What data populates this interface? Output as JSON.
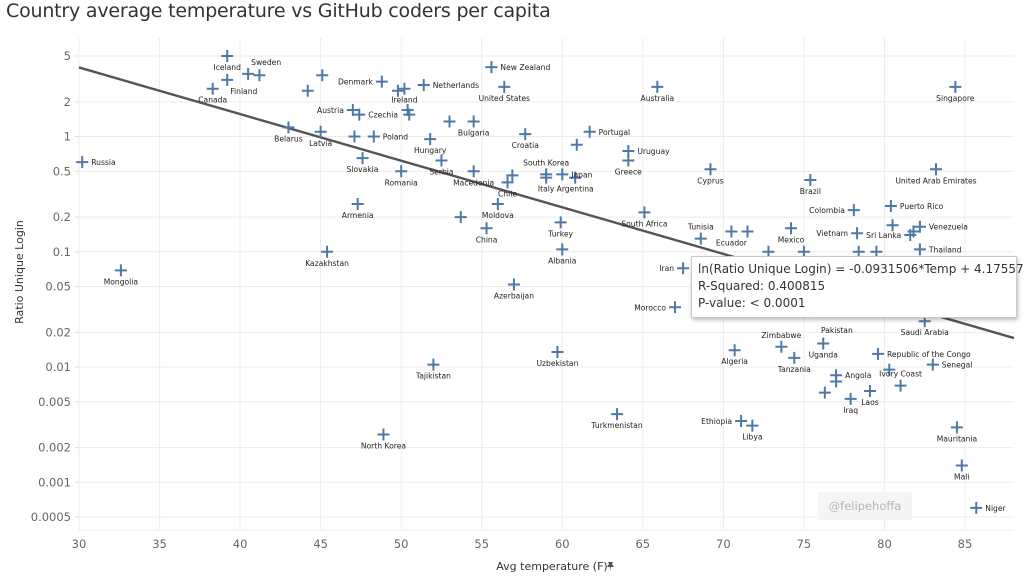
{
  "page": {
    "title": "Country average temperature vs GitHub coders per capita"
  },
  "tooltip": {
    "line1": "ln(Ratio Unique Login) = -0.0931506*Temp + 4.17557",
    "line2": "R-Squared: 0.400815",
    "line3": "P-value: < 0.0001"
  },
  "watermark": "@felipehoffa",
  "colors": {
    "marker": "#4e79a7",
    "trend": "#555555",
    "grid": "#ececec"
  },
  "chart_data": {
    "type": "scatter",
    "title": "Country average temperature vs GitHub coders per capita",
    "xlabel": "Avg temperature (F)",
    "ylabel": "Ratio Unique Login",
    "x_scale": "linear",
    "y_scale": "log",
    "xlim": [
      30,
      88
    ],
    "ylim": [
      0.0004,
      7
    ],
    "x_ticks": [
      30,
      35,
      40,
      45,
      50,
      55,
      60,
      65,
      70,
      75,
      80,
      85
    ],
    "x_tick_labels": [
      "30",
      "35",
      "40",
      "45",
      "50",
      "55",
      "60",
      "65",
      "70",
      "75",
      "80",
      "85"
    ],
    "y_ticks": [
      5,
      2,
      1,
      0.5,
      0.2,
      0.1,
      0.05,
      0.02,
      0.01,
      0.005,
      0.002,
      0.001,
      0.0005
    ],
    "y_tick_labels": [
      "5",
      "2",
      "1",
      "0.5",
      "0.2",
      "0.1",
      "0.05",
      "0.02",
      "0.01",
      "0.005",
      "0.002",
      "0.001",
      "0.0005"
    ],
    "grid": true,
    "marker": "plus",
    "trendline": {
      "type": "exponential",
      "slope": -0.0931506,
      "intercept": 4.17557,
      "r_squared": 0.400815,
      "p_value": "< 0.0001"
    },
    "points": [
      {
        "label": "Russia",
        "x": 30.2,
        "y": 0.6,
        "pos": "right"
      },
      {
        "label": "Mongolia",
        "x": 32.6,
        "y": 0.069,
        "pos": "below"
      },
      {
        "label": "Iceland",
        "x": 39.2,
        "y": 5.0,
        "pos": "below"
      },
      {
        "label": "Sweden",
        "x": 40.5,
        "y": 3.5,
        "pos": "above-right"
      },
      {
        "label": "",
        "x": 41.2,
        "y": 3.4,
        "pos": "none"
      },
      {
        "label": "Finland",
        "x": 39.2,
        "y": 3.1,
        "pos": "below-right"
      },
      {
        "label": "Canada",
        "x": 38.3,
        "y": 2.6,
        "pos": "below"
      },
      {
        "label": "Belarus",
        "x": 43.0,
        "y": 1.2,
        "pos": "below"
      },
      {
        "label": "",
        "x": 44.2,
        "y": 2.5,
        "pos": "none"
      },
      {
        "label": "",
        "x": 45.1,
        "y": 3.4,
        "pos": "none"
      },
      {
        "label": "Latvia",
        "x": 45.0,
        "y": 1.1,
        "pos": "below"
      },
      {
        "label": "Kazakhstan",
        "x": 45.4,
        "y": 0.1,
        "pos": "below"
      },
      {
        "label": "Denmark",
        "x": 48.8,
        "y": 3.0,
        "pos": "left"
      },
      {
        "label": "Austria",
        "x": 47.0,
        "y": 1.7,
        "pos": "left"
      },
      {
        "label": "Czechia",
        "x": 47.4,
        "y": 1.55,
        "pos": "right"
      },
      {
        "label": "",
        "x": 47.1,
        "y": 1.0,
        "pos": "none"
      },
      {
        "label": "Poland",
        "x": 48.3,
        "y": 1.0,
        "pos": "right"
      },
      {
        "label": "Slovakia",
        "x": 47.6,
        "y": 0.65,
        "pos": "below"
      },
      {
        "label": "Armenia",
        "x": 47.3,
        "y": 0.26,
        "pos": "below"
      },
      {
        "label": "North Korea",
        "x": 48.9,
        "y": 0.0026,
        "pos": "below"
      },
      {
        "label": "",
        "x": 49.8,
        "y": 2.5,
        "pos": "none"
      },
      {
        "label": "Ireland",
        "x": 50.2,
        "y": 2.6,
        "pos": "below"
      },
      {
        "label": "Netherlands",
        "x": 51.4,
        "y": 2.8,
        "pos": "right"
      },
      {
        "label": "",
        "x": 50.4,
        "y": 1.7,
        "pos": "none"
      },
      {
        "label": "",
        "x": 50.5,
        "y": 1.55,
        "pos": "none"
      },
      {
        "label": "Romania",
        "x": 50.0,
        "y": 0.5,
        "pos": "below"
      },
      {
        "label": "Hungary",
        "x": 51.8,
        "y": 0.95,
        "pos": "below"
      },
      {
        "label": "Serbia",
        "x": 52.5,
        "y": 0.62,
        "pos": "below"
      },
      {
        "label": "Tajikistan",
        "x": 52.0,
        "y": 0.0105,
        "pos": "below"
      },
      {
        "label": "",
        "x": 53.0,
        "y": 1.35,
        "pos": "none"
      },
      {
        "label": "Bulgaria",
        "x": 54.5,
        "y": 1.35,
        "pos": "below"
      },
      {
        "label": "",
        "x": 53.7,
        "y": 0.2,
        "pos": "none"
      },
      {
        "label": "Macedonia",
        "x": 54.5,
        "y": 0.5,
        "pos": "below"
      },
      {
        "label": "New Zealand",
        "x": 55.6,
        "y": 4.0,
        "pos": "right"
      },
      {
        "label": "United States",
        "x": 56.4,
        "y": 2.7,
        "pos": "below"
      },
      {
        "label": "China",
        "x": 55.3,
        "y": 0.16,
        "pos": "below"
      },
      {
        "label": "Moldova",
        "x": 56.0,
        "y": 0.26,
        "pos": "below"
      },
      {
        "label": "Chile",
        "x": 56.6,
        "y": 0.4,
        "pos": "below"
      },
      {
        "label": "",
        "x": 56.9,
        "y": 0.46,
        "pos": "none"
      },
      {
        "label": "Azerbaijan",
        "x": 57.0,
        "y": 0.052,
        "pos": "below"
      },
      {
        "label": "Croatia",
        "x": 57.7,
        "y": 1.05,
        "pos": "below"
      },
      {
        "label": "Italy",
        "x": 59.0,
        "y": 0.44,
        "pos": "below"
      },
      {
        "label": "South Korea",
        "x": 59.0,
        "y": 0.47,
        "pos": "above"
      },
      {
        "label": "Japan",
        "x": 60.0,
        "y": 0.47,
        "pos": "above"
      },
      {
        "label": "Argentina",
        "x": 60.8,
        "y": 0.44,
        "pos": "below"
      },
      {
        "label": "Turkey",
        "x": 59.9,
        "y": 0.18,
        "pos": "below"
      },
      {
        "label": "Albania",
        "x": 60.0,
        "y": 0.105,
        "pos": "below"
      },
      {
        "label": "Uzbekistan",
        "x": 59.7,
        "y": 0.0135,
        "pos": "below"
      },
      {
        "label": "",
        "x": 60.9,
        "y": 0.85,
        "pos": "none"
      },
      {
        "label": "Portugal",
        "x": 61.7,
        "y": 1.1,
        "pos": "right"
      },
      {
        "label": "Uruguay",
        "x": 64.1,
        "y": 0.75,
        "pos": "right"
      },
      {
        "label": "Greece",
        "x": 64.1,
        "y": 0.62,
        "pos": "below"
      },
      {
        "label": "Turkmenistan",
        "x": 63.4,
        "y": 0.0039,
        "pos": "below"
      },
      {
        "label": "South Africa",
        "x": 65.1,
        "y": 0.22,
        "pos": "below"
      },
      {
        "label": "Australia",
        "x": 65.9,
        "y": 2.7,
        "pos": "below"
      },
      {
        "label": "Iran",
        "x": 67.5,
        "y": 0.072,
        "pos": "below"
      },
      {
        "label": "Morocco",
        "x": 67.0,
        "y": 0.033,
        "pos": "below"
      },
      {
        "label": "Tunisia",
        "x": 68.6,
        "y": 0.13,
        "pos": "below"
      },
      {
        "label": "Cyprus",
        "x": 69.2,
        "y": 0.52,
        "pos": "below"
      },
      {
        "label": "Ecuador",
        "x": 70.5,
        "y": 0.15,
        "pos": "below"
      },
      {
        "label": "",
        "x": 71.5,
        "y": 0.15,
        "pos": "none"
      },
      {
        "label": "",
        "x": 72.8,
        "y": 0.1,
        "pos": "none"
      },
      {
        "label": "Ethiopia",
        "x": 71.1,
        "y": 0.0034,
        "pos": "left"
      },
      {
        "label": "Libya",
        "x": 71.8,
        "y": 0.0031,
        "pos": "below"
      },
      {
        "label": "Algeria",
        "x": 70.7,
        "y": 0.014,
        "pos": "below"
      },
      {
        "label": "Mexico",
        "x": 74.2,
        "y": 0.16,
        "pos": "below"
      },
      {
        "label": "",
        "x": 75.0,
        "y": 0.1,
        "pos": "none"
      },
      {
        "label": "Zimbabwe",
        "x": 73.6,
        "y": 0.015,
        "pos": "above"
      },
      {
        "label": "Tanzania",
        "x": 74.4,
        "y": 0.012,
        "pos": "below"
      },
      {
        "label": "Uganda",
        "x": 76.2,
        "y": 0.016,
        "pos": "below"
      },
      {
        "label": "Brazil",
        "x": 75.4,
        "y": 0.42,
        "pos": "below"
      },
      {
        "label": "Pakistan",
        "x": 75.5,
        "y": 0.03,
        "pos": "below"
      },
      {
        "label": "Colombia",
        "x": 78.1,
        "y": 0.23,
        "pos": "left"
      },
      {
        "label": "Vietnam",
        "x": 78.3,
        "y": 0.145,
        "pos": "left"
      },
      {
        "label": "",
        "x": 78.4,
        "y": 0.1,
        "pos": "none"
      },
      {
        "label": "",
        "x": 79.5,
        "y": 0.1,
        "pos": "none"
      },
      {
        "label": "Angola",
        "x": 77.0,
        "y": 0.0085,
        "pos": "right"
      },
      {
        "label": "",
        "x": 77.0,
        "y": 0.0075,
        "pos": "none"
      },
      {
        "label": "",
        "x": 76.3,
        "y": 0.006,
        "pos": "none"
      },
      {
        "label": "Iraq",
        "x": 77.9,
        "y": 0.0053,
        "pos": "below"
      },
      {
        "label": "Laos",
        "x": 79.1,
        "y": 0.0062,
        "pos": "below"
      },
      {
        "label": "Republic of the Congo",
        "x": 79.6,
        "y": 0.013,
        "pos": "right"
      },
      {
        "label": "",
        "x": 80.3,
        "y": 0.0095,
        "pos": "none"
      },
      {
        "label": "Ivory Coast",
        "x": 81.0,
        "y": 0.0069,
        "pos": "below"
      },
      {
        "label": "Saudi Arabia",
        "x": 82.5,
        "y": 0.025,
        "pos": "left"
      },
      {
        "label": "Puerto Rico",
        "x": 80.4,
        "y": 0.25,
        "pos": "right"
      },
      {
        "label": "Sri Lanka",
        "x": 81.6,
        "y": 0.14,
        "pos": "left"
      },
      {
        "label": "",
        "x": 80.5,
        "y": 0.17,
        "pos": "none"
      },
      {
        "label": "",
        "x": 81.8,
        "y": 0.15,
        "pos": "none"
      },
      {
        "label": "Venezuela",
        "x": 82.2,
        "y": 0.165,
        "pos": "right"
      },
      {
        "label": "Thailand",
        "x": 82.2,
        "y": 0.105,
        "pos": "right"
      },
      {
        "label": "Senegal",
        "x": 83.0,
        "y": 0.0105,
        "pos": "below"
      },
      {
        "label": "United Arab Emirates",
        "x": 83.2,
        "y": 0.52,
        "pos": "below"
      },
      {
        "label": "Singapore",
        "x": 84.4,
        "y": 2.7,
        "pos": "below"
      },
      {
        "label": "Mauritania",
        "x": 84.5,
        "y": 0.003,
        "pos": "below"
      },
      {
        "label": "Mali",
        "x": 84.8,
        "y": 0.0014,
        "pos": "below"
      },
      {
        "label": "Niger",
        "x": 85.7,
        "y": 0.0006,
        "pos": "right"
      }
    ]
  }
}
